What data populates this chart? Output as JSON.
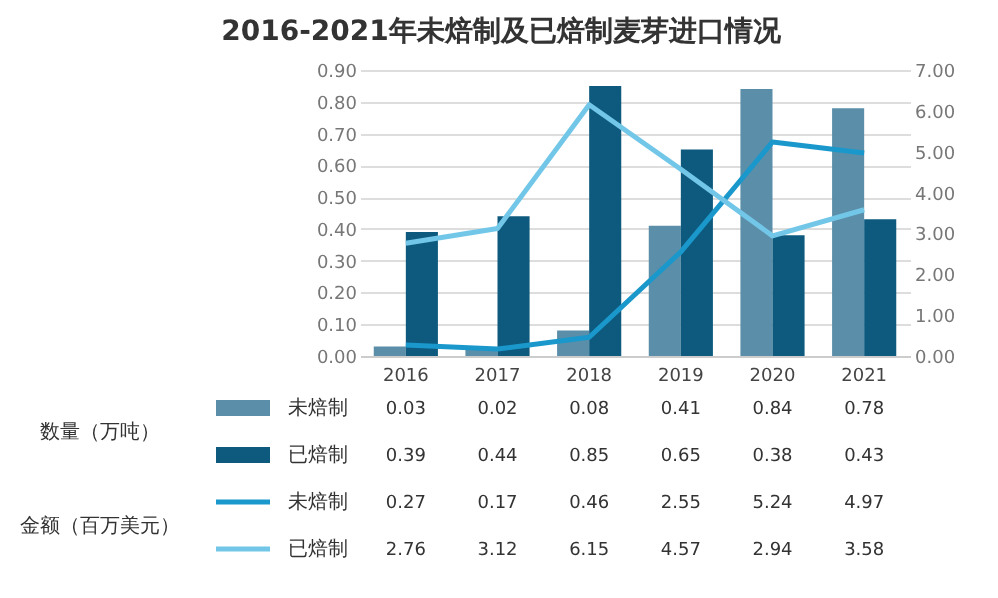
{
  "chart_data": {
    "type": "bar",
    "title": "2016-2021年未焙制及已焙制麦芽进口情况",
    "categories": [
      "2016",
      "2017",
      "2018",
      "2019",
      "2020",
      "2021"
    ],
    "series": [
      {
        "name": "未焙制",
        "color": "#5b8ea8",
        "values": [
          0.03,
          0.02,
          0.08,
          0.41,
          0.84,
          0.78
        ]
      },
      {
        "name": "已焙制",
        "color": "#0d5a7e",
        "values": [
          0.39,
          0.44,
          0.85,
          0.65,
          0.38,
          0.43
        ]
      },
      {
        "name": "未焙制",
        "type": "line",
        "axis": "y2",
        "color": "#1a98cc",
        "values": [
          0.27,
          0.17,
          0.46,
          2.55,
          5.24,
          4.97
        ]
      },
      {
        "name": "已焙制",
        "type": "line",
        "axis": "y2",
        "color": "#72c7e8",
        "values": [
          2.76,
          3.12,
          6.15,
          4.57,
          2.94,
          3.58
        ]
      }
    ],
    "ylim": [
      0,
      0.9
    ],
    "yticks": [
      {
        "value": 0,
        "label": "0.00"
      },
      {
        "value": 0.1,
        "label": "0.10"
      },
      {
        "value": 0.2,
        "label": "0.20"
      },
      {
        "value": 0.3,
        "label": "0.30"
      },
      {
        "value": 0.4,
        "label": "0.40"
      },
      {
        "value": 0.5,
        "label": "0.50"
      },
      {
        "value": 0.6,
        "label": "0.60"
      },
      {
        "value": 0.7,
        "label": "0.70"
      },
      {
        "value": 0.8,
        "label": "0.80"
      },
      {
        "value": 0.9,
        "label": "0.90"
      }
    ],
    "y2lim": [
      0,
      7
    ],
    "y2ticks": [
      {
        "value": 0,
        "label": "0.00"
      },
      {
        "value": 1,
        "label": "1.00"
      },
      {
        "value": 2,
        "label": "2.00"
      },
      {
        "value": 3,
        "label": "3.00"
      },
      {
        "value": 4,
        "label": "4.00"
      },
      {
        "value": 5,
        "label": "5.00"
      },
      {
        "value": 6,
        "label": "6.00"
      },
      {
        "value": 7,
        "label": "7.00"
      }
    ],
    "grid": "y",
    "data_labels": true,
    "legend": "bottom",
    "annotations": [
      "数量（万吨）",
      "金额（百万美元）"
    ]
  }
}
